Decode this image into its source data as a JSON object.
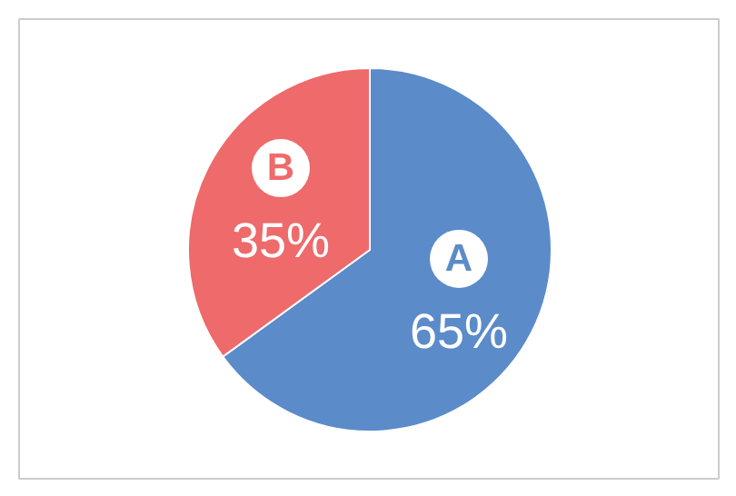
{
  "chart_data": {
    "type": "pie",
    "categories": [
      "A",
      "B"
    ],
    "values": [
      65,
      35
    ],
    "colors": [
      "#5b8bc9",
      "#ee6a6b"
    ],
    "value_labels": [
      "65%",
      "35%"
    ]
  }
}
